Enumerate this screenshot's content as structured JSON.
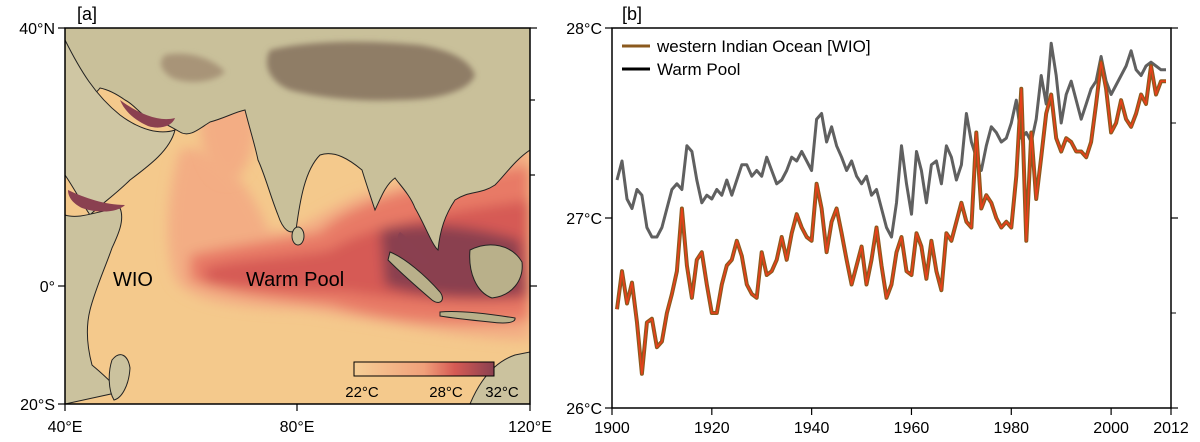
{
  "colors": {
    "wio": "#8b5a1e",
    "wio_inner": "#e8401a",
    "warm_pool": "#606060",
    "ocean_base": "#f4c98c",
    "ocean_warm": "#f0a07a",
    "ocean_hot": "#d65a54",
    "ocean_hottest": "#8a4050",
    "land": "#c9c09a",
    "highland": "#8f7d66"
  },
  "panel_a": {
    "label": "[a]",
    "lat_ticks": [
      "40°N",
      "0°",
      "20°S"
    ],
    "lon_ticks": [
      "40°E",
      "80°E",
      "120°E"
    ],
    "region_labels": {
      "wio": "WIO",
      "warm_pool": "Warm Pool"
    },
    "colorbar": {
      "labels": [
        "22°C",
        "28°C",
        "32°C"
      ]
    }
  },
  "panel_b": {
    "label": "[b]"
  },
  "chart_data": {
    "type": "line",
    "title": "",
    "xlabel": "",
    "ylabel": "",
    "xlim": [
      1900,
      2012
    ],
    "ylim": [
      26,
      28
    ],
    "x_ticks": [
      1900,
      1920,
      1940,
      1960,
      1980,
      2000,
      2012
    ],
    "x_tick_labels": [
      "1900",
      "1920",
      "1940",
      "1960",
      "1980",
      "2000",
      "2012"
    ],
    "y_ticks": [
      26,
      27,
      28
    ],
    "y_tick_labels": [
      "26°C",
      "27°C",
      "28°C"
    ],
    "legend_position": "top-left",
    "series": [
      {
        "name": "western Indian Ocean [WIO]",
        "key": "wio",
        "x": [
          1901,
          1902,
          1903,
          1904,
          1905,
          1906,
          1907,
          1908,
          1909,
          1910,
          1911,
          1912,
          1913,
          1914,
          1915,
          1916,
          1917,
          1918,
          1919,
          1920,
          1921,
          1922,
          1923,
          1924,
          1925,
          1926,
          1927,
          1928,
          1929,
          1930,
          1931,
          1932,
          1933,
          1934,
          1935,
          1936,
          1937,
          1938,
          1939,
          1940,
          1941,
          1942,
          1943,
          1944,
          1945,
          1946,
          1947,
          1948,
          1949,
          1950,
          1951,
          1952,
          1953,
          1954,
          1955,
          1956,
          1957,
          1958,
          1959,
          1960,
          1961,
          1962,
          1963,
          1964,
          1965,
          1966,
          1967,
          1968,
          1969,
          1970,
          1971,
          1972,
          1973,
          1974,
          1975,
          1976,
          1977,
          1978,
          1979,
          1980,
          1981,
          1982,
          1983,
          1984,
          1985,
          1986,
          1987,
          1988,
          1989,
          1990,
          1991,
          1992,
          1993,
          1994,
          1995,
          1996,
          1997,
          1998,
          1999,
          2000,
          2001,
          2002,
          2003,
          2004,
          2005,
          2006,
          2007,
          2008,
          2009,
          2010,
          2011
        ],
        "values": [
          26.52,
          26.72,
          26.55,
          26.66,
          26.45,
          26.18,
          26.45,
          26.47,
          26.32,
          26.35,
          26.5,
          26.6,
          26.72,
          27.05,
          26.75,
          26.58,
          26.78,
          26.82,
          26.65,
          26.5,
          26.5,
          26.65,
          26.75,
          26.78,
          26.88,
          26.8,
          26.65,
          26.6,
          26.58,
          26.82,
          26.7,
          26.72,
          26.78,
          26.9,
          26.78,
          26.92,
          27.02,
          26.95,
          26.9,
          26.88,
          27.18,
          27.05,
          26.82,
          26.98,
          27.05,
          26.92,
          26.78,
          26.65,
          26.75,
          26.85,
          26.65,
          26.78,
          26.95,
          26.75,
          26.58,
          26.65,
          26.82,
          26.9,
          26.72,
          26.7,
          26.92,
          26.85,
          26.68,
          26.88,
          26.72,
          26.62,
          26.92,
          26.88,
          26.98,
          27.08,
          26.98,
          26.95,
          27.45,
          27.05,
          27.12,
          27.08,
          27.0,
          26.95,
          26.98,
          26.95,
          27.22,
          27.68,
          26.88,
          27.45,
          27.1,
          27.32,
          27.55,
          27.65,
          27.42,
          27.35,
          27.42,
          27.4,
          27.35,
          27.35,
          27.32,
          27.4,
          27.6,
          27.82,
          27.68,
          27.45,
          27.5,
          27.62,
          27.52,
          27.48,
          27.55,
          27.65,
          27.6,
          27.8,
          27.65,
          27.72,
          27.72
        ]
      },
      {
        "name": "Warm Pool",
        "key": "warm_pool",
        "x": [
          1901,
          1902,
          1903,
          1904,
          1905,
          1906,
          1907,
          1908,
          1909,
          1910,
          1911,
          1912,
          1913,
          1914,
          1915,
          1916,
          1917,
          1918,
          1919,
          1920,
          1921,
          1922,
          1923,
          1924,
          1925,
          1926,
          1927,
          1928,
          1929,
          1930,
          1931,
          1932,
          1933,
          1934,
          1935,
          1936,
          1937,
          1938,
          1939,
          1940,
          1941,
          1942,
          1943,
          1944,
          1945,
          1946,
          1947,
          1948,
          1949,
          1950,
          1951,
          1952,
          1953,
          1954,
          1955,
          1956,
          1957,
          1958,
          1959,
          1960,
          1961,
          1962,
          1963,
          1964,
          1965,
          1966,
          1967,
          1968,
          1969,
          1970,
          1971,
          1972,
          1973,
          1974,
          1975,
          1976,
          1977,
          1978,
          1979,
          1980,
          1981,
          1982,
          1983,
          1984,
          1985,
          1986,
          1987,
          1988,
          1989,
          1990,
          1991,
          1992,
          1993,
          1994,
          1995,
          1996,
          1997,
          1998,
          1999,
          2000,
          2001,
          2002,
          2003,
          2004,
          2005,
          2006,
          2007,
          2008,
          2009,
          2010,
          2011
        ],
        "values": [
          27.2,
          27.3,
          27.1,
          27.05,
          27.15,
          27.12,
          26.95,
          26.9,
          26.9,
          26.95,
          27.05,
          27.15,
          27.18,
          27.15,
          27.38,
          27.35,
          27.2,
          27.08,
          27.12,
          27.1,
          27.15,
          27.12,
          27.2,
          27.12,
          27.2,
          27.28,
          27.28,
          27.22,
          27.25,
          27.22,
          27.32,
          27.25,
          27.18,
          27.2,
          27.25,
          27.32,
          27.3,
          27.35,
          27.3,
          27.25,
          27.52,
          27.55,
          27.4,
          27.48,
          27.38,
          27.32,
          27.25,
          27.3,
          27.22,
          27.18,
          27.22,
          27.12,
          27.15,
          27.05,
          26.95,
          26.9,
          27.08,
          27.38,
          27.18,
          27.02,
          27.35,
          27.25,
          27.08,
          27.28,
          27.3,
          27.18,
          27.38,
          27.32,
          27.2,
          27.28,
          27.55,
          27.4,
          27.32,
          27.25,
          27.38,
          27.48,
          27.45,
          27.4,
          27.42,
          27.5,
          27.62,
          27.42,
          27.45,
          27.4,
          27.52,
          27.75,
          27.6,
          27.92,
          27.75,
          27.5,
          27.65,
          27.72,
          27.62,
          27.52,
          27.6,
          27.68,
          27.72,
          27.85,
          27.72,
          27.65,
          27.7,
          27.75,
          27.8,
          27.88,
          27.78,
          27.75,
          27.8,
          27.82,
          27.8,
          27.78,
          27.78
        ]
      }
    ]
  }
}
